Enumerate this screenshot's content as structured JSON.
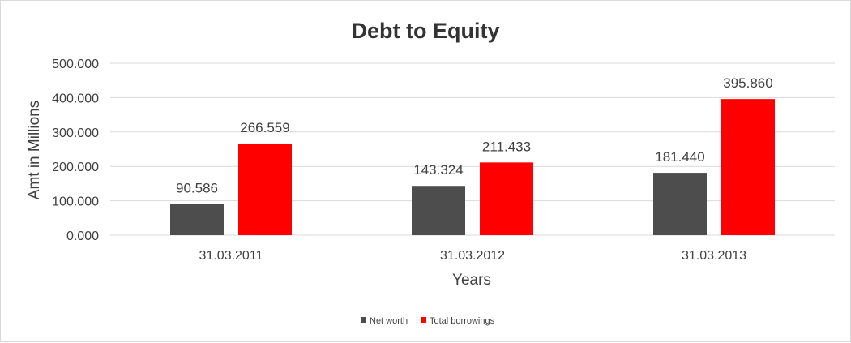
{
  "chart_data": {
    "type": "bar",
    "title": "Debt to Equity",
    "xlabel": "Years",
    "ylabel": "Amt in Millions",
    "categories": [
      "31.03.2011",
      "31.03.2012",
      "31.03.2013"
    ],
    "series": [
      {
        "name": "Net worth",
        "values": [
          90.586,
          143.324,
          181.44
        ],
        "labels": [
          "90.586",
          "143.324",
          "181.440"
        ],
        "color": "#4d4d4d"
      },
      {
        "name": "Total borrowings",
        "values": [
          266.559,
          211.433,
          395.86
        ],
        "labels": [
          "266.559",
          "211.433",
          "395.860"
        ],
        "color": "#ff0000"
      }
    ],
    "ylim": [
      0,
      500
    ],
    "yticks": [
      "0.000",
      "100.000",
      "200.000",
      "300.000",
      "400.000",
      "500.000"
    ],
    "grid": true,
    "legend_position": "bottom"
  }
}
